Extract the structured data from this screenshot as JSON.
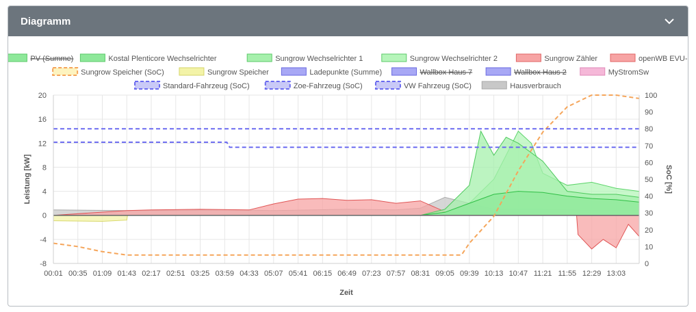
{
  "card": {
    "title": "Diagramm",
    "toggle_icon": "chevron-down-icon"
  },
  "chart_data": {
    "type": "area",
    "title": "",
    "xlabel": "Zeit",
    "ylabel": "Leistung [kW]",
    "y2label": "SoC [%]",
    "ylim": [
      -8,
      20
    ],
    "y2lim": [
      0,
      100
    ],
    "yticks": [
      -8,
      -4,
      0,
      4,
      8,
      12,
      16,
      20
    ],
    "y2ticks": [
      0,
      10,
      20,
      30,
      40,
      50,
      60,
      70,
      80,
      90,
      100
    ],
    "x_tick_labels": [
      "00:01",
      "00:35",
      "01:09",
      "01:43",
      "02:17",
      "02:51",
      "03:25",
      "03:59",
      "04:33",
      "05:07",
      "05:41",
      "06:15",
      "06:49",
      "07:23",
      "07:57",
      "08:31",
      "09:05",
      "09:39",
      "10:13",
      "10:47",
      "11:21",
      "11:55",
      "12:29",
      "13:03"
    ],
    "x_range": [
      "00:01",
      "13:35"
    ],
    "grid": true,
    "legend_position": "top",
    "legend": [
      {
        "name": "PV (Summe)",
        "color": "#8ee89a",
        "style": "fill",
        "hidden": true
      },
      {
        "name": "Kostal Plenticore Wechselrichter",
        "color": "#8ee89a",
        "style": "fill",
        "hidden": false
      },
      {
        "name": "Sungrow Wechselrichter 1",
        "color": "#a6f0ac",
        "style": "fill",
        "hidden": false
      },
      {
        "name": "Sungrow Wechselrichter 2",
        "color": "#b6f5ba",
        "style": "fill",
        "hidden": false
      },
      {
        "name": "Sungrow Zähler",
        "color": "#f7a4a4",
        "style": "fill",
        "hidden": false
      },
      {
        "name": "openWB EVU-Kit",
        "color": "#f7a4a4",
        "style": "fill",
        "hidden": false
      },
      {
        "name": "Sungrow Speicher (SoC)",
        "color": "#f5a55a",
        "style": "dash",
        "hidden": false
      },
      {
        "name": "Sungrow Speicher",
        "color": "#f3f3a8",
        "style": "fill",
        "hidden": false
      },
      {
        "name": "Ladepunkte (Summe)",
        "color": "#a8a8f5",
        "style": "fill",
        "hidden": false
      },
      {
        "name": "Wallbox Haus 7",
        "color": "#a8a8f5",
        "style": "fill",
        "hidden": true
      },
      {
        "name": "Wallbox Haus 2",
        "color": "#a8a8f5",
        "style": "fill",
        "hidden": true
      },
      {
        "name": "MyStromSw",
        "color": "#f5b8d8",
        "style": "fill",
        "hidden": false
      },
      {
        "name": "Standard-Fahrzeug (SoC)",
        "color": "#6a6af0",
        "style": "dash",
        "hidden": false
      },
      {
        "name": "Zoe-Fahrzeug (SoC)",
        "color": "#6a6af0",
        "style": "dash",
        "hidden": false
      },
      {
        "name": "VW Fahrzeug (SoC)",
        "color": "#6a6af0",
        "style": "dash",
        "hidden": false
      },
      {
        "name": "Hausverbrauch",
        "color": "#c8c8c8",
        "style": "fill",
        "hidden": false
      }
    ],
    "series": [
      {
        "name": "Hausverbrauch",
        "axis": "kW",
        "color": "#c8c8c8",
        "x": [
          "00:01",
          "01:43",
          "03:59",
          "05:07",
          "06:49",
          "07:57",
          "08:31",
          "09:05",
          "09:39",
          "10:13",
          "11:21",
          "12:29",
          "13:35"
        ],
        "values": [
          0.9,
          0.8,
          0.9,
          0.8,
          1.0,
          0.9,
          1.2,
          3.0,
          2.0,
          1.0,
          1.0,
          0.8,
          0.8
        ]
      },
      {
        "name": "Sungrow Speicher",
        "axis": "kW",
        "color": "#f3f3a8",
        "x": [
          "00:01",
          "01:09",
          "01:43",
          "01:44",
          "13:35"
        ],
        "values": [
          -0.9,
          -1.0,
          -0.8,
          0.0,
          0.0
        ]
      },
      {
        "name": "openWB EVU-Kit",
        "axis": "kW",
        "color": "#f7a4a4",
        "x": [
          "00:01",
          "01:43",
          "02:17",
          "03:25",
          "04:33",
          "05:07",
          "05:41",
          "06:15",
          "06:49",
          "07:23",
          "07:57",
          "08:31",
          "09:05",
          "09:39",
          "10:13",
          "10:47",
          "11:21",
          "11:55",
          "12:08",
          "12:10",
          "12:29",
          "12:45",
          "13:03",
          "13:20",
          "13:35"
        ],
        "values": [
          0.0,
          0.8,
          0.9,
          1.0,
          0.9,
          1.9,
          2.7,
          2.8,
          2.5,
          2.6,
          2.0,
          2.4,
          0.6,
          0.0,
          0.0,
          0.0,
          0.0,
          0.0,
          0.0,
          -3.2,
          -5.6,
          -4.0,
          -5.4,
          -1.5,
          -3.5
        ]
      },
      {
        "name": "Sungrow Wechselrichter 2",
        "axis": "kW",
        "color": "#b6f5ba",
        "x": [
          "00:01",
          "08:31",
          "09:05",
          "09:39",
          "10:13",
          "10:30",
          "10:47",
          "11:05",
          "11:21",
          "11:55",
          "12:29",
          "13:03",
          "13:35"
        ],
        "values": [
          0,
          0,
          0.5,
          2.0,
          6.0,
          10.0,
          14.0,
          12.0,
          7.0,
          5.0,
          5.5,
          4.5,
          4.0
        ]
      },
      {
        "name": "Sungrow Wechselrichter 1",
        "axis": "kW",
        "color": "#a6f0ac",
        "x": [
          "00:01",
          "08:31",
          "09:05",
          "09:39",
          "09:55",
          "10:13",
          "10:30",
          "10:47",
          "11:21",
          "11:55",
          "12:29",
          "13:03",
          "13:35"
        ],
        "values": [
          0,
          0,
          1.0,
          5.0,
          14.0,
          10.0,
          13.0,
          12.0,
          9.0,
          4.0,
          3.5,
          3.5,
          3.0
        ]
      },
      {
        "name": "Kostal Plenticore Wechselrichter",
        "axis": "kW",
        "color": "#8ee89a",
        "x": [
          "00:01",
          "08:31",
          "09:05",
          "09:39",
          "10:13",
          "10:47",
          "11:21",
          "11:55",
          "12:29",
          "13:03",
          "13:35"
        ],
        "values": [
          0,
          0,
          0.5,
          2.0,
          3.5,
          4.0,
          3.8,
          3.2,
          2.8,
          2.6,
          2.2
        ]
      },
      {
        "name": "Sungrow Speicher (SoC)",
        "axis": "SoC",
        "color": "#f5a55a",
        "dash": true,
        "x": [
          "00:01",
          "00:35",
          "01:09",
          "01:43",
          "09:28",
          "09:39",
          "10:13",
          "10:47",
          "11:21",
          "11:55",
          "12:29",
          "13:03",
          "13:35"
        ],
        "values": [
          12,
          10,
          7,
          5,
          5,
          12,
          28,
          55,
          78,
          93,
          100,
          100,
          98
        ]
      },
      {
        "name": "Standard-Fahrzeug (SoC)",
        "axis": "SoC",
        "color": "#6a6af0",
        "dash": true,
        "x": [
          "00:01",
          "13:35"
        ],
        "values": [
          80,
          80
        ]
      },
      {
        "name": "Zoe-Fahrzeug (SoC)",
        "axis": "SoC",
        "color": "#6a6af0",
        "dash": true,
        "x": [
          "00:01",
          "04:02",
          "04:06",
          "13:35"
        ],
        "values": [
          72,
          72,
          69,
          69
        ]
      }
    ]
  }
}
